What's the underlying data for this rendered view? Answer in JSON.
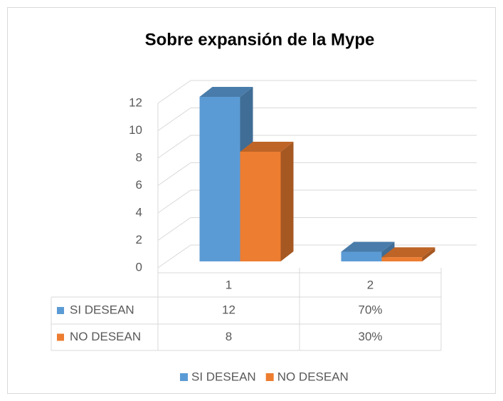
{
  "chart_data": {
    "type": "bar3d",
    "title": "Sobre expansión de la Mype",
    "categories": [
      "1",
      "2"
    ],
    "series": [
      {
        "name": "SI DESEAN",
        "color": "#5b9bd5",
        "values": [
          12,
          0.7
        ],
        "value_labels": [
          "12",
          "70%"
        ]
      },
      {
        "name": "NO DESEAN",
        "color": "#ed7d31",
        "values": [
          8,
          0.3
        ],
        "value_labels": [
          "8",
          "30%"
        ]
      }
    ],
    "ylim": [
      0,
      12
    ],
    "yticks": [
      0,
      2,
      4,
      6,
      8,
      10,
      12
    ],
    "grid": true,
    "legend": "bottom"
  }
}
